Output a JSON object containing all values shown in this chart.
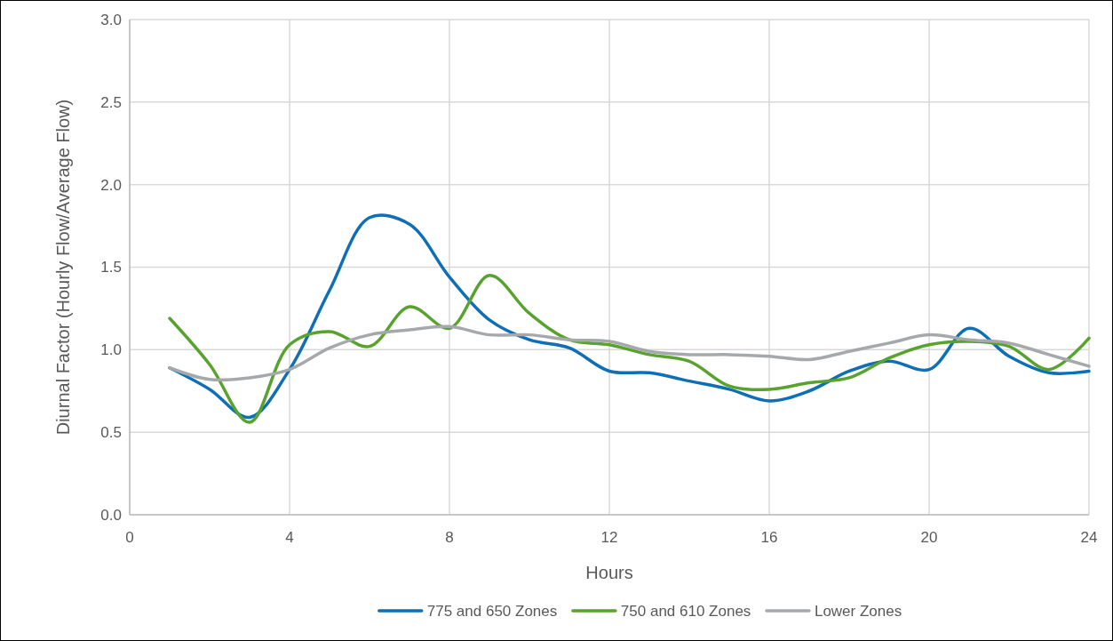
{
  "chart_data": {
    "type": "line",
    "xlabel": "Hours",
    "ylabel": "Diurnal Factor (Hourly Flow/Average Flow)",
    "x": [
      1,
      2,
      3,
      4,
      5,
      6,
      7,
      8,
      9,
      10,
      11,
      12,
      13,
      14,
      15,
      16,
      17,
      18,
      19,
      20,
      21,
      22,
      23,
      24
    ],
    "series": [
      {
        "name": "775 and 650 Zones",
        "color": "#0e6eb6",
        "values": [
          0.89,
          0.76,
          0.59,
          0.88,
          1.36,
          1.8,
          1.76,
          1.44,
          1.18,
          1.06,
          1.01,
          0.87,
          0.86,
          0.81,
          0.76,
          0.69,
          0.75,
          0.87,
          0.93,
          0.88,
          1.13,
          0.96,
          0.86,
          0.87
        ]
      },
      {
        "name": "750 and 610 Zones",
        "color": "#58a22e",
        "values": [
          1.19,
          0.91,
          0.56,
          1.03,
          1.11,
          1.02,
          1.26,
          1.13,
          1.45,
          1.22,
          1.06,
          1.03,
          0.97,
          0.93,
          0.78,
          0.76,
          0.8,
          0.83,
          0.95,
          1.03,
          1.05,
          1.02,
          0.88,
          1.07
        ]
      },
      {
        "name": "Lower Zones",
        "color": "#a6a9ac",
        "values": [
          0.89,
          0.82,
          0.83,
          0.88,
          1.01,
          1.09,
          1.12,
          1.14,
          1.09,
          1.09,
          1.06,
          1.05,
          0.99,
          0.97,
          0.97,
          0.96,
          0.94,
          0.99,
          1.04,
          1.09,
          1.06,
          1.04,
          0.97,
          0.9
        ]
      }
    ],
    "xlim": [
      0,
      24
    ],
    "xticks": [
      0,
      4,
      8,
      12,
      16,
      20,
      24
    ],
    "ylim": [
      0,
      3
    ],
    "yticks": [
      {
        "value": 0,
        "label": "0.0"
      },
      {
        "value": 0.5,
        "label": "0.5"
      },
      {
        "value": 1,
        "label": "1.0"
      },
      {
        "value": 1.5,
        "label": "1.5"
      },
      {
        "value": 2,
        "label": "2.0"
      },
      {
        "value": 2.5,
        "label": "2.5"
      },
      {
        "value": 3,
        "label": "3.0"
      }
    ],
    "grid": true,
    "legend": "bottom",
    "marker": "none",
    "line_style": "solid"
  }
}
